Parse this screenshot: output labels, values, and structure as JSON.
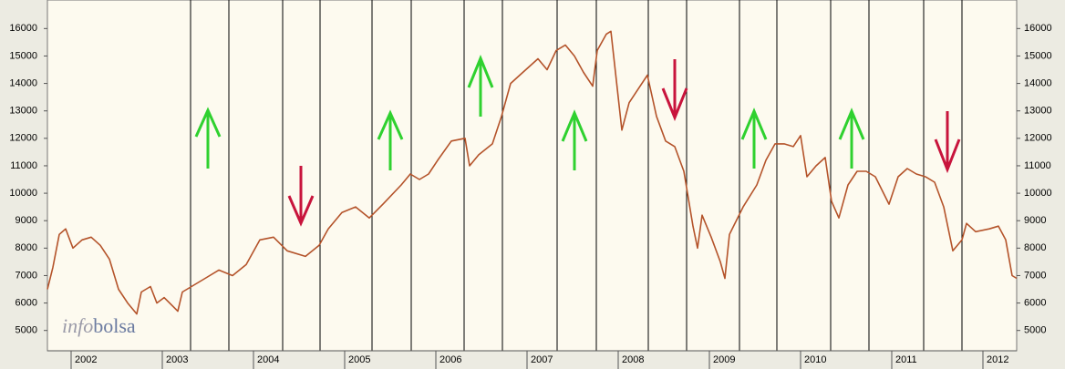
{
  "chart_data": {
    "type": "line",
    "watermark": {
      "prefix": "info",
      "suffix": "bolsa"
    },
    "x": [
      2001.74,
      2001.8,
      2001.87,
      2001.94,
      2002.02,
      2002.12,
      2002.22,
      2002.32,
      2002.42,
      2002.52,
      2002.62,
      2002.72,
      2002.77,
      2002.87,
      2002.94,
      2003.02,
      2003.17,
      2003.22,
      2003.32,
      2003.47,
      2003.62,
      2003.77,
      2003.92,
      2004.07,
      2004.22,
      2004.37,
      2004.57,
      2004.72,
      2004.82,
      2004.97,
      2005.12,
      2005.27,
      2005.42,
      2005.62,
      2005.72,
      2005.82,
      2005.92,
      2006.02,
      2006.17,
      2006.32,
      2006.37,
      2006.47,
      2006.62,
      2006.72,
      2006.82,
      2006.92,
      2007.02,
      2007.12,
      2007.22,
      2007.32,
      2007.42,
      2007.52,
      2007.62,
      2007.72,
      2007.77,
      2007.87,
      2007.92,
      2008.0,
      2008.04,
      2008.12,
      2008.22,
      2008.32,
      2008.42,
      2008.52,
      2008.62,
      2008.72,
      2008.82,
      2008.87,
      2008.92,
      2009.02,
      2009.12,
      2009.17,
      2009.22,
      2009.37,
      2009.52,
      2009.62,
      2009.72,
      2009.82,
      2009.92,
      2010.0,
      2010.07,
      2010.17,
      2010.27,
      2010.34,
      2010.42,
      2010.52,
      2010.62,
      2010.72,
      2010.82,
      2010.97,
      2011.07,
      2011.17,
      2011.27,
      2011.37,
      2011.47,
      2011.57,
      2011.67,
      2011.77,
      2011.82,
      2011.92,
      2012.07,
      2012.17,
      2012.25,
      2012.32,
      2012.37
    ],
    "series": [
      {
        "color": "#b4532a",
        "values": [
          6500,
          7300,
          8500,
          8700,
          8000,
          8300,
          8400,
          8100,
          7600,
          6500,
          6000,
          5600,
          6400,
          6600,
          6000,
          6200,
          5700,
          6400,
          6600,
          6900,
          7200,
          7000,
          7400,
          8300,
          8400,
          7900,
          7700,
          8100,
          8700,
          9300,
          9500,
          9100,
          9600,
          10300,
          10700,
          10500,
          10700,
          11200,
          11900,
          12000,
          11000,
          11400,
          11800,
          12800,
          14000,
          14300,
          14600,
          14900,
          14500,
          15200,
          15400,
          15000,
          14400,
          13900,
          15200,
          15800,
          15900,
          13500,
          12300,
          13300,
          13800,
          14300,
          12800,
          11900,
          11700,
          10800,
          8800,
          8000,
          9200,
          8400,
          7500,
          6900,
          8500,
          9500,
          10300,
          11200,
          11800,
          11800,
          11700,
          12100,
          10600,
          11000,
          11300,
          9700,
          9100,
          10300,
          10800,
          10800,
          10600,
          9600,
          10600,
          10900,
          10700,
          10600,
          10400,
          9500,
          7900,
          8300,
          8900,
          8600,
          8700,
          8800,
          8300,
          7000,
          6900
        ]
      }
    ],
    "xlim": [
      2001.74,
      2012.37
    ],
    "xticks": [
      2002,
      2003,
      2004,
      2005,
      2006,
      2007,
      2008,
      2009,
      2010,
      2011,
      2012
    ],
    "ylim": [
      4260,
      17040
    ],
    "yticks": [
      5000,
      6000,
      7000,
      8000,
      9000,
      10000,
      11000,
      12000,
      13000,
      14000,
      15000,
      16000
    ]
  }
}
